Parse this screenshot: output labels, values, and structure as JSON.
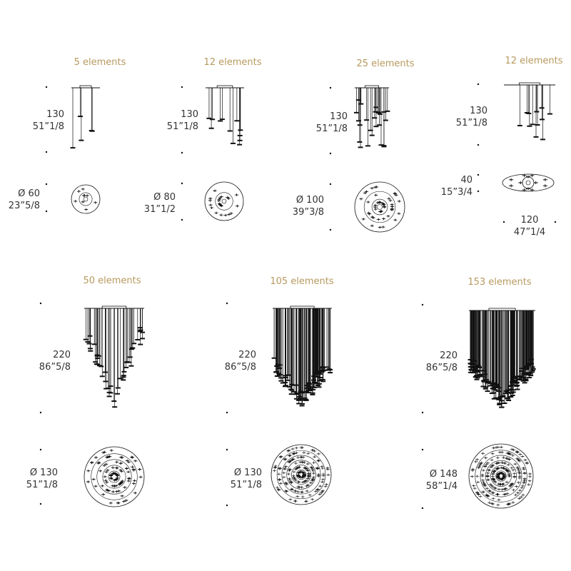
{
  "colors": {
    "title": "#b79a5f",
    "text": "#333333",
    "drawing": "#111111"
  },
  "modules": [
    {
      "elements": "5 elements",
      "count": 5,
      "height_cm": "130",
      "height_in": "51”1/8",
      "plan": "round",
      "diameter_cm": "Ø 60",
      "diameter_in": "23”5/8"
    },
    {
      "elements": "12 elements",
      "count": 12,
      "height_cm": "130",
      "height_in": "51”1/8",
      "plan": "round",
      "diameter_cm": "Ø 80",
      "diameter_in": "31”1/2"
    },
    {
      "elements": "25 elements",
      "count": 25,
      "height_cm": "130",
      "height_in": "51”1/8",
      "plan": "round",
      "diameter_cm": "Ø 100",
      "diameter_in": "39”3/8"
    },
    {
      "elements": "12 elements",
      "count": 12,
      "height_cm": "130",
      "height_in": "51”1/8",
      "plan": "oval",
      "depth_cm": "40",
      "depth_in": "15”3/4",
      "width_cm": "120",
      "width_in": "47”1/4"
    },
    {
      "elements": "50 elements",
      "count": 50,
      "height_cm": "220",
      "height_in": "86”5/8",
      "plan": "round",
      "diameter_cm": "Ø 130",
      "diameter_in": "51”1/8"
    },
    {
      "elements": "105 elements",
      "count": 105,
      "height_cm": "220",
      "height_in": "86”5/8",
      "plan": "round",
      "diameter_cm": "Ø 130",
      "diameter_in": "51”1/8"
    },
    {
      "elements": "153 elements",
      "count": 153,
      "height_cm": "220",
      "height_in": "86”5/8",
      "plan": "round",
      "diameter_cm": "Ø 148",
      "diameter_in": "58”1/4"
    }
  ]
}
